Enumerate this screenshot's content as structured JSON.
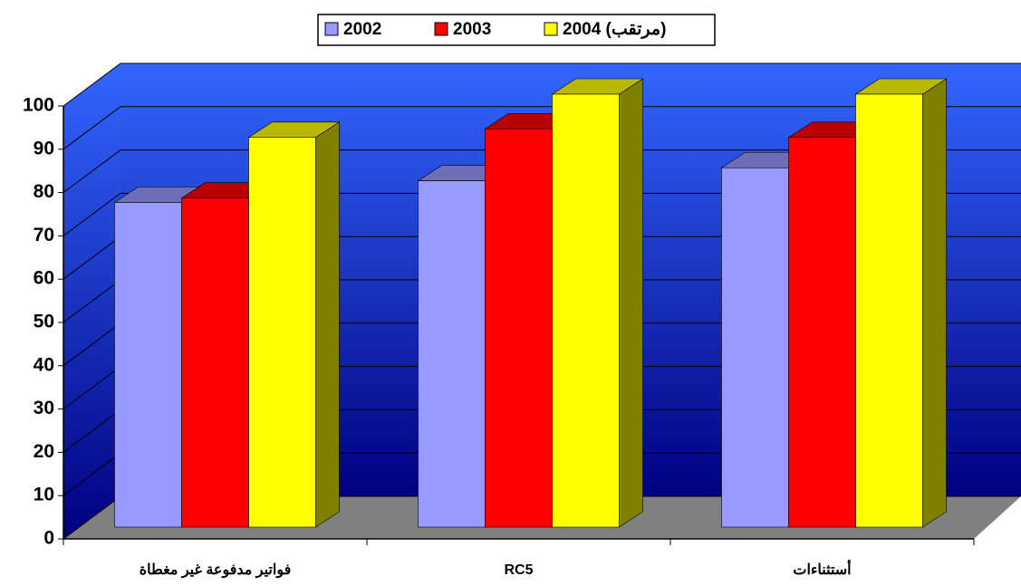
{
  "chart_data": {
    "type": "bar3d",
    "categories": [
      "فواتير مدفوعة غير مغطاة",
      "RC5",
      "أستثناءات"
    ],
    "series": [
      {
        "name": "2002",
        "color": "#9999ff",
        "values": [
          75,
          80,
          83
        ]
      },
      {
        "name": "2003",
        "color": "#ff0000",
        "values": [
          76,
          92,
          90
        ]
      },
      {
        "name": "2004 (مرتقب)",
        "color": "#ffff00",
        "values": [
          90,
          100,
          100
        ]
      }
    ],
    "ylim": [
      0,
      100
    ],
    "yticks": [
      0,
      10,
      20,
      30,
      40,
      50,
      60,
      70,
      80,
      90,
      100
    ],
    "grid": true,
    "legend": "top"
  }
}
